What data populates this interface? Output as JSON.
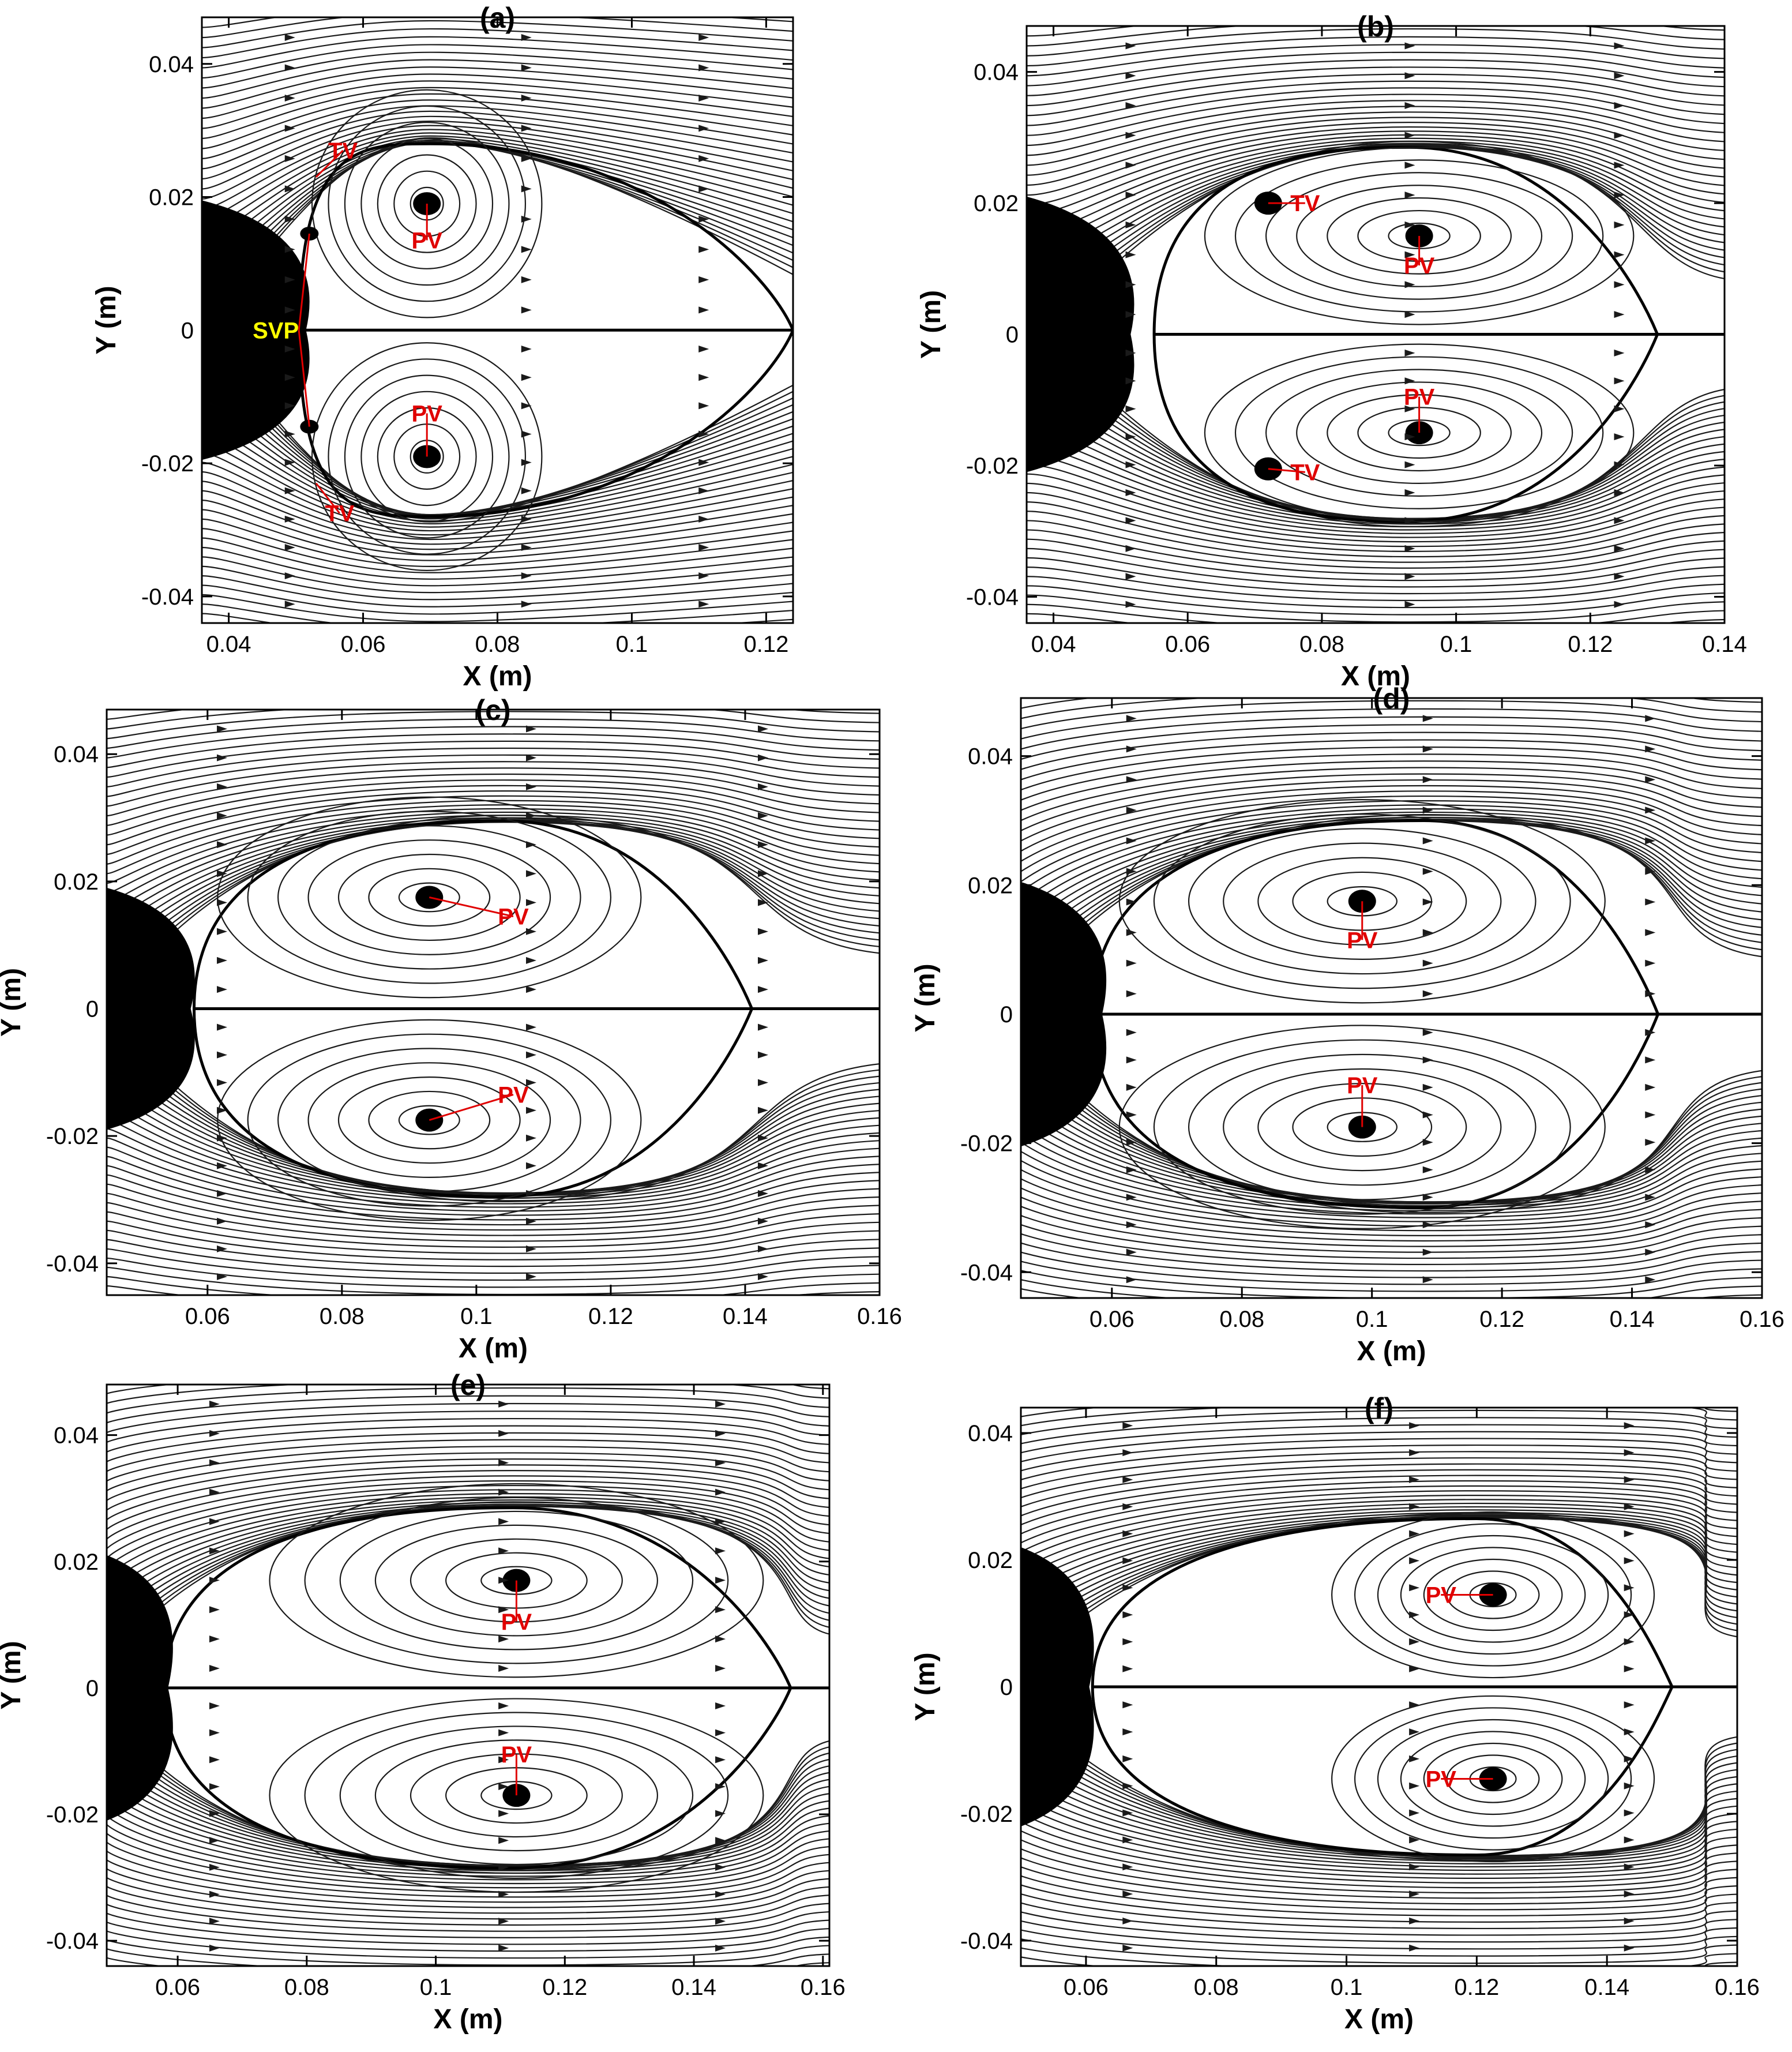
{
  "figure": {
    "colors": {
      "annotation": "#e00000",
      "svp_annotation": "#ffff00",
      "streamline": "#1a1a1a"
    },
    "panels": [
      {
        "id": "a",
        "title": "(a)",
        "xlabel": "X (m)",
        "ylabel": "Y (m)",
        "xlim": [
          0.036,
          0.124
        ],
        "ylim": [
          -0.044,
          0.047
        ],
        "xticks": [
          0.04,
          0.06,
          0.08,
          0.1,
          0.12
        ],
        "xtick_labels": [
          "0.04",
          "0.06",
          "0.08",
          "0.1",
          "0.12"
        ],
        "yticks": [
          -0.04,
          -0.02,
          0,
          0.02,
          0.04
        ],
        "ytick_labels": [
          "-0.04",
          "-0.02",
          "0",
          "0.02",
          "0.04"
        ],
        "body_x": 0.036,
        "body_width": 0.0155,
        "body_halfheight": 0.0195,
        "bubble": {
          "x0": 0.0505,
          "x1": 0.124,
          "half": 0.028,
          "xmax": 0.07
        },
        "vortices": [
          {
            "label": "PV",
            "x": 0.0695,
            "y": 0.019,
            "label_x": 0.0695,
            "label_y": 0.0135
          },
          {
            "label": "PV",
            "x": 0.0695,
            "y": -0.019,
            "label_x": 0.0695,
            "label_y": -0.0125
          },
          {
            "label": "TV",
            "x": 0.053,
            "y": 0.023,
            "label_x": 0.057,
            "label_y": 0.027,
            "core": false
          },
          {
            "label": "TV",
            "x": 0.053,
            "y": -0.023,
            "label_x": 0.0565,
            "label_y": -0.0275,
            "core": false
          },
          {
            "label": "",
            "x": 0.052,
            "y": 0.0145,
            "core": true,
            "small": true
          },
          {
            "label": "",
            "x": 0.052,
            "y": -0.0145,
            "core": true,
            "small": true
          }
        ],
        "svp": {
          "label": "SVP",
          "x": 0.047,
          "y": 0.0
        }
      },
      {
        "id": "b",
        "title": "(b)",
        "xlabel": "X (m)",
        "ylabel": "Y (m)",
        "xlim": [
          0.036,
          0.14
        ],
        "ylim": [
          -0.044,
          0.047
        ],
        "xticks": [
          0.04,
          0.06,
          0.08,
          0.1,
          0.12,
          0.14
        ],
        "xtick_labels": [
          "0.04",
          "0.06",
          "0.08",
          "0.1",
          "0.12",
          "0.14"
        ],
        "yticks": [
          -0.04,
          -0.02,
          0,
          0.02,
          0.04
        ],
        "ytick_labels": [
          "-0.04",
          "-0.02",
          "0",
          "0.02",
          "0.04"
        ],
        "body_x": 0.036,
        "body_width": 0.0155,
        "body_halfheight": 0.021,
        "bubble": {
          "x0": 0.055,
          "x1": 0.13,
          "half": 0.0285,
          "xmax": 0.093
        },
        "vortices": [
          {
            "label": "PV",
            "x": 0.0945,
            "y": 0.015,
            "label_x": 0.0945,
            "label_y": 0.0105
          },
          {
            "label": "PV",
            "x": 0.0945,
            "y": -0.015,
            "label_x": 0.0945,
            "label_y": -0.0095
          },
          {
            "label": "TV",
            "x": 0.072,
            "y": 0.02,
            "label_x": 0.0775,
            "label_y": 0.02
          },
          {
            "label": "TV",
            "x": 0.072,
            "y": -0.0205,
            "label_x": 0.0775,
            "label_y": -0.021
          }
        ]
      },
      {
        "id": "c",
        "title": "(c)",
        "xlabel": "X (m)",
        "ylabel": "Y (m)",
        "xlim": [
          0.045,
          0.16
        ],
        "ylim": [
          -0.045,
          0.047
        ],
        "xticks": [
          0.06,
          0.08,
          0.1,
          0.12,
          0.14,
          0.16
        ],
        "xtick_labels": [
          "0.06",
          "0.08",
          "0.1",
          "0.12",
          "0.14",
          "0.16"
        ],
        "yticks": [
          -0.04,
          -0.02,
          0,
          0.02,
          0.04
        ],
        "ytick_labels": [
          "-0.04",
          "-0.02",
          "0",
          "0.02",
          "0.04"
        ],
        "body_x": 0.045,
        "body_width": 0.0125,
        "body_halfheight": 0.019,
        "bubble": {
          "x0": 0.058,
          "x1": 0.141,
          "half": 0.0295,
          "xmax": 0.104
        },
        "vortices": [
          {
            "label": "PV",
            "x": 0.093,
            "y": 0.0175,
            "label_x": 0.1055,
            "label_y": 0.0145
          },
          {
            "label": "PV",
            "x": 0.093,
            "y": -0.0175,
            "label_x": 0.1055,
            "label_y": -0.0135
          }
        ]
      },
      {
        "id": "d",
        "title": "(d)",
        "xlabel": "X (m)",
        "ylabel": "Y (m)",
        "xlim": [
          0.046,
          0.16
        ],
        "ylim": [
          -0.044,
          0.049
        ],
        "xticks": [
          0.06,
          0.08,
          0.1,
          0.12,
          0.14,
          0.16
        ],
        "xtick_labels": [
          "0.06",
          "0.08",
          "0.1",
          "0.12",
          "0.14",
          "0.16"
        ],
        "yticks": [
          -0.04,
          -0.02,
          0,
          0.02,
          0.04
        ],
        "ytick_labels": [
          "-0.04",
          "-0.02",
          "0",
          "0.02",
          "0.04"
        ],
        "body_x": 0.046,
        "body_width": 0.0125,
        "body_halfheight": 0.0205,
        "bubble": {
          "x0": 0.057,
          "x1": 0.144,
          "half": 0.03,
          "xmax": 0.108
        },
        "vortices": [
          {
            "label": "PV",
            "x": 0.0985,
            "y": 0.0175,
            "label_x": 0.0985,
            "label_y": 0.0115
          },
          {
            "label": "PV",
            "x": 0.0985,
            "y": -0.0175,
            "label_x": 0.0985,
            "label_y": -0.011
          }
        ]
      },
      {
        "id": "e",
        "title": "(e)",
        "xlabel": "X (m)",
        "ylabel": "Y (m)",
        "xlim": [
          0.049,
          0.161
        ],
        "ylim": [
          -0.044,
          0.048
        ],
        "xticks": [
          0.06,
          0.08,
          0.1,
          0.12,
          0.14,
          0.16
        ],
        "xtick_labels": [
          "0.06",
          "0.08",
          "0.1",
          "0.12",
          "0.14",
          "0.16"
        ],
        "yticks": [
          -0.04,
          -0.02,
          0,
          0.02,
          0.04
        ],
        "ytick_labels": [
          "-0.04",
          "-0.02",
          "0",
          "0.02",
          "0.04"
        ],
        "body_x": 0.049,
        "body_width": 0.0095,
        "body_halfheight": 0.021,
        "bubble": {
          "x0": 0.058,
          "x1": 0.155,
          "half": 0.0285,
          "xmax": 0.112
        },
        "vortices": [
          {
            "label": "PV",
            "x": 0.1125,
            "y": 0.017,
            "label_x": 0.1125,
            "label_y": 0.0105
          },
          {
            "label": "PV",
            "x": 0.1125,
            "y": -0.017,
            "label_x": 0.1125,
            "label_y": -0.0105
          }
        ]
      },
      {
        "id": "f",
        "title": "(f)",
        "xlabel": "X (m)",
        "ylabel": "Y (m)",
        "xlim": [
          0.05,
          0.16
        ],
        "ylim": [
          -0.044,
          0.044
        ],
        "xticks": [
          0.06,
          0.08,
          0.1,
          0.12,
          0.14,
          0.16
        ],
        "xtick_labels": [
          "0.06",
          "0.08",
          "0.1",
          "0.12",
          "0.14",
          "0.16"
        ],
        "yticks": [
          -0.04,
          -0.02,
          0,
          0.02,
          0.04
        ],
        "ytick_labels": [
          "-0.04",
          "-0.02",
          "0",
          "0.02",
          "0.04"
        ],
        "body_x": 0.05,
        "body_width": 0.0105,
        "body_halfheight": 0.022,
        "bubble": {
          "x0": 0.061,
          "x1": 0.15,
          "half": 0.0265,
          "xmax": 0.12
        },
        "vortices": [
          {
            "label": "PV",
            "x": 0.1225,
            "y": 0.0145,
            "label_x": 0.1145,
            "label_y": 0.0145
          },
          {
            "label": "PV",
            "x": 0.1225,
            "y": -0.0145,
            "label_x": 0.1145,
            "label_y": -0.0145
          }
        ]
      }
    ]
  }
}
